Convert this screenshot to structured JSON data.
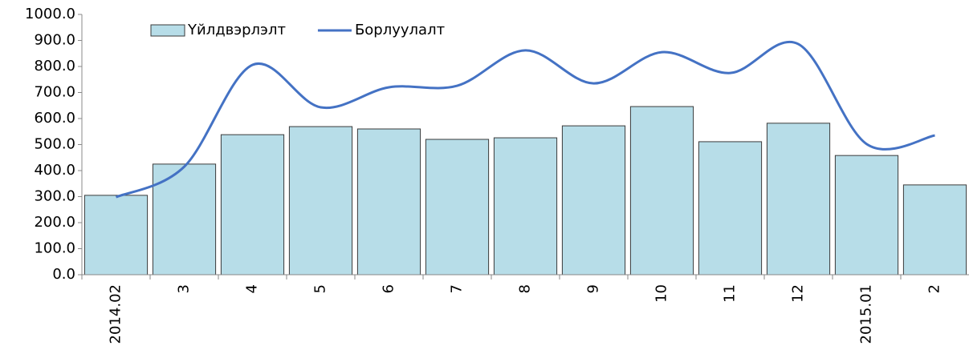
{
  "chart_data": {
    "type": "bar_line",
    "categories": [
      "2014.02",
      "3",
      "4",
      "5",
      "6",
      "7",
      "8",
      "9",
      "10",
      "11",
      "12",
      "2015.01",
      "2"
    ],
    "series": [
      {
        "name": "Үйлдвэрлэлт",
        "type": "bar",
        "color": "#b7dde8",
        "values": [
          305,
          425,
          538,
          569,
          560,
          520,
          526,
          572,
          646,
          511,
          582,
          458,
          345
        ]
      },
      {
        "name": "Борлуулалт",
        "type": "line",
        "color": "#4472c4",
        "values": [
          298,
          415,
          806,
          643,
          720,
          726,
          862,
          735,
          855,
          775,
          886,
          502,
          535
        ]
      }
    ],
    "ylim": [
      0,
      1000
    ],
    "yticks": [
      {
        "value": 0,
        "label": "0.0"
      },
      {
        "value": 100,
        "label": "100.0"
      },
      {
        "value": 200,
        "label": "200.0"
      },
      {
        "value": 300,
        "label": "300.0"
      },
      {
        "value": 400,
        "label": "400.0"
      },
      {
        "value": 500,
        "label": "500.0"
      },
      {
        "value": 600,
        "label": "600.0"
      },
      {
        "value": 700,
        "label": "700.0"
      },
      {
        "value": 800,
        "label": "800.0"
      },
      {
        "value": 900,
        "label": "900.0"
      },
      {
        "value": 1000,
        "label": "1000.0"
      }
    ],
    "grid": false,
    "legend": "top"
  }
}
